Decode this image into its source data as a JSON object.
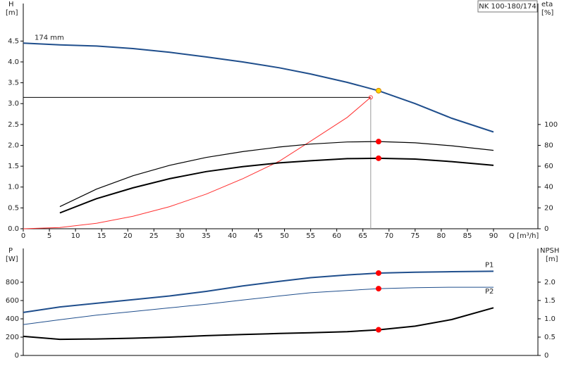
{
  "chart_data": [
    {
      "type": "line",
      "title": "NK 100-180/174",
      "ylabel": [
        "H",
        "[m]"
      ],
      "y2label": [
        "eta",
        "[%]"
      ],
      "xlabel": "Q [m³/h]",
      "xlim": [
        0,
        98.5
      ],
      "xticks": [
        0,
        5,
        10,
        15,
        20,
        25,
        30,
        35,
        40,
        45,
        50,
        55,
        60,
        65,
        70,
        75,
        80,
        85,
        90
      ],
      "ylim": [
        0,
        5.4
      ],
      "yticks": [
        {
          "value": 0,
          "label": "0.0"
        },
        0.5,
        {
          "value": 1,
          "label": "1.0"
        },
        1.5,
        {
          "value": 2,
          "label": "2.0"
        },
        2.5,
        {
          "value": 3,
          "label": "3.0"
        },
        3.5,
        {
          "value": 4,
          "label": "4.0"
        },
        4.5
      ],
      "y2lim": [
        0,
        216
      ],
      "y2ticks": [
        0,
        20,
        40,
        60,
        80,
        100
      ],
      "series": [
        {
          "name": "174 mm",
          "color": "#1f4e8c",
          "width": 2,
          "x": [
            0,
            7,
            14,
            21,
            28,
            35,
            42,
            49,
            55,
            62,
            68,
            75,
            82,
            90
          ],
          "values": [
            4.45,
            4.41,
            4.38,
            4.32,
            4.23,
            4.12,
            4.0,
            3.86,
            3.71,
            3.51,
            3.31,
            3.0,
            2.65,
            2.32
          ]
        },
        {
          "color": "#ff3030",
          "width": 1,
          "x": [
            0,
            7,
            14,
            21,
            28,
            35,
            42,
            49,
            55,
            62,
            66.5
          ],
          "values": [
            0,
            0.03,
            0.13,
            0.3,
            0.53,
            0.83,
            1.2,
            1.62,
            2.1,
            2.67,
            3.15
          ]
        },
        {
          "color": "#000000",
          "width": 1.2,
          "axis": "y2",
          "x": [
            7,
            14,
            21,
            28,
            35,
            42,
            49,
            55,
            62,
            68,
            75,
            82,
            90
          ],
          "values": [
            21.2,
            38,
            50.8,
            60.8,
            68.4,
            74,
            78.4,
            81.2,
            83.2,
            83.6,
            82.4,
            79.6,
            75.2
          ]
        },
        {
          "color": "#000000",
          "width": 2,
          "axis": "y2",
          "x": [
            7,
            14,
            21,
            28,
            35,
            42,
            49,
            55,
            62,
            68,
            75,
            82,
            90
          ],
          "values": [
            15.2,
            28.8,
            39.2,
            48,
            54.8,
            59.6,
            63.2,
            65.2,
            67.2,
            67.6,
            66.8,
            64.4,
            60.8
          ]
        }
      ],
      "operating_point": {
        "x": 66.5,
        "y": 3.15
      },
      "markers": [
        {
          "x": 66.5,
          "y": 3.15,
          "color": "#ff3030",
          "style": "hollow"
        },
        {
          "x": 68,
          "y": 3.31,
          "color": "#ffd700"
        },
        {
          "x": 68,
          "y": 83.6,
          "axis": "y2",
          "color": "#ff0000"
        },
        {
          "x": 68,
          "y": 67.6,
          "axis": "y2",
          "color": "#ff0000"
        }
      ]
    },
    {
      "type": "line",
      "ylabel": [
        "P",
        "[W]"
      ],
      "y2label": [
        "NPSH",
        "[m]"
      ],
      "xlim": [
        0,
        98.5
      ],
      "ylim": [
        0,
        1169
      ],
      "yticks": [
        0,
        200,
        400,
        600,
        800
      ],
      "y2lim": [
        0,
        2.92
      ],
      "y2ticks": [
        0,
        0.5,
        {
          "value": 1,
          "label": "1.0"
        },
        1.5,
        {
          "value": 2,
          "label": "2.0"
        }
      ],
      "series": [
        {
          "name": "P1",
          "color": "#1f4e8c",
          "width": 2,
          "x": [
            0,
            7,
            14,
            21,
            28,
            35,
            42,
            49,
            55,
            62,
            68,
            75,
            82,
            90
          ],
          "values": [
            470,
            530,
            570,
            610,
            650,
            700,
            760,
            810,
            850,
            880,
            900,
            910,
            915,
            920
          ]
        },
        {
          "name": "P2",
          "color": "#1f4e8c",
          "width": 1,
          "x": [
            0,
            7,
            14,
            21,
            28,
            35,
            42,
            49,
            55,
            62,
            68,
            75,
            82,
            90
          ],
          "values": [
            338,
            390,
            440,
            480,
            520,
            560,
            605,
            650,
            685,
            710,
            730,
            740,
            745,
            745
          ]
        },
        {
          "color": "#000000",
          "width": 2,
          "axis": "y2",
          "x": [
            0,
            7,
            14,
            21,
            28,
            35,
            42,
            49,
            55,
            62,
            68,
            75,
            82,
            90
          ],
          "values": [
            0.52,
            0.44,
            0.45,
            0.47,
            0.5,
            0.54,
            0.57,
            0.6,
            0.62,
            0.65,
            0.7,
            0.8,
            0.98,
            1.3
          ]
        }
      ],
      "markers": [
        {
          "x": 68,
          "y": 900,
          "color": "#ff0000"
        },
        {
          "x": 68,
          "y": 730,
          "color": "#ff0000"
        },
        {
          "x": 68,
          "y": 0.7,
          "axis": "y2",
          "color": "#ff0000"
        }
      ]
    }
  ]
}
